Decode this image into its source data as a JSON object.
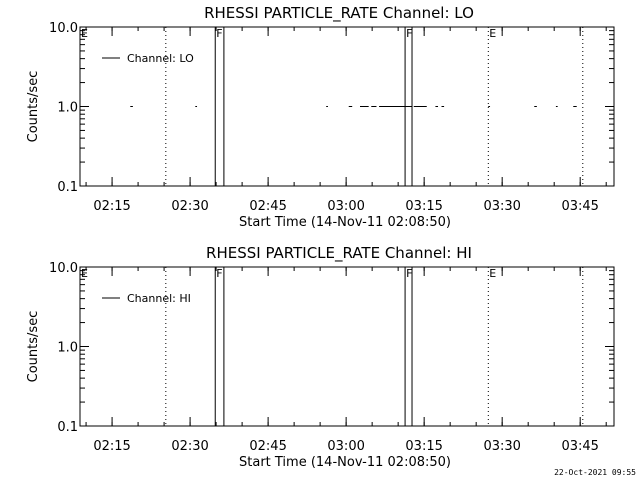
{
  "stamp": "22-Oct-2021 09:55",
  "chart_data": [
    {
      "type": "line",
      "title": "RHESSI PARTICLE_RATE Channel: LO",
      "xlabel": "Start Time (14-Nov-11 02:08:50)",
      "ylabel": "Counts/sec",
      "yscale": "log",
      "ylim": [
        0.1,
        10.0
      ],
      "yticks": [
        "0.1",
        "1.0",
        "10.0"
      ],
      "xlim": [
        "02:08:50",
        "03:51:30"
      ],
      "xticks": [
        "02:15",
        "02:30",
        "02:45",
        "03:00",
        "03:15",
        "03:30",
        "03:45"
      ],
      "legend": {
        "position": "top-left",
        "label": "Channel: LO"
      },
      "series": [
        {
          "name": "Channel: LO",
          "segments": [
            [
              "02:18:30",
              "02:19:00"
            ],
            [
              "02:31:00",
              "02:31:20"
            ],
            [
              "02:56:10",
              "02:56:30"
            ],
            [
              "03:00:30",
              "03:01:10"
            ],
            [
              "03:02:40",
              "03:04:20"
            ],
            [
              "03:04:50",
              "03:05:50"
            ],
            [
              "03:06:20",
              "03:12:40"
            ],
            [
              "03:13:00",
              "03:15:30"
            ],
            [
              "03:17:10",
              "03:17:40"
            ],
            [
              "03:18:20",
              "03:18:50"
            ],
            [
              "03:27:20",
              "03:27:40"
            ],
            [
              "03:36:10",
              "03:36:40"
            ],
            [
              "03:40:20",
              "03:40:40"
            ],
            [
              "03:43:40",
              "03:44:20"
            ]
          ],
          "value": 1.0
        }
      ],
      "markers": [
        {
          "type": "dotted",
          "time": "02:25:20"
        },
        {
          "type": "solid",
          "time": "02:34:50",
          "label": "F"
        },
        {
          "type": "solid",
          "time": "02:36:30"
        },
        {
          "type": "solid",
          "time": "03:11:20",
          "label": "F"
        },
        {
          "type": "solid",
          "time": "03:12:40"
        },
        {
          "type": "dotted",
          "time": "03:27:20",
          "label": "E"
        },
        {
          "type": "dotted",
          "time": "03:45:30"
        }
      ],
      "start_flag": "E"
    },
    {
      "type": "line",
      "title": "RHESSI PARTICLE_RATE Channel: HI",
      "xlabel": "Start Time (14-Nov-11 02:08:50)",
      "ylabel": "Counts/sec",
      "yscale": "log",
      "ylim": [
        0.1,
        10.0
      ],
      "yticks": [
        "0.1",
        "1.0",
        "10.0"
      ],
      "xlim": [
        "02:08:50",
        "03:51:30"
      ],
      "xticks": [
        "02:15",
        "02:30",
        "02:45",
        "03:00",
        "03:15",
        "03:30",
        "03:45"
      ],
      "legend": {
        "position": "top-left",
        "label": "Channel: HI"
      },
      "series": [
        {
          "name": "Channel: HI",
          "segments": [],
          "value": 1.0
        }
      ],
      "markers": [
        {
          "type": "dotted",
          "time": "02:25:20"
        },
        {
          "type": "solid",
          "time": "02:34:50",
          "label": "F"
        },
        {
          "type": "solid",
          "time": "02:36:30"
        },
        {
          "type": "solid",
          "time": "03:11:20",
          "label": "F"
        },
        {
          "type": "solid",
          "time": "03:12:40"
        },
        {
          "type": "dotted",
          "time": "03:27:20",
          "label": "E"
        },
        {
          "type": "dotted",
          "time": "03:45:30"
        }
      ],
      "start_flag": "E"
    }
  ]
}
